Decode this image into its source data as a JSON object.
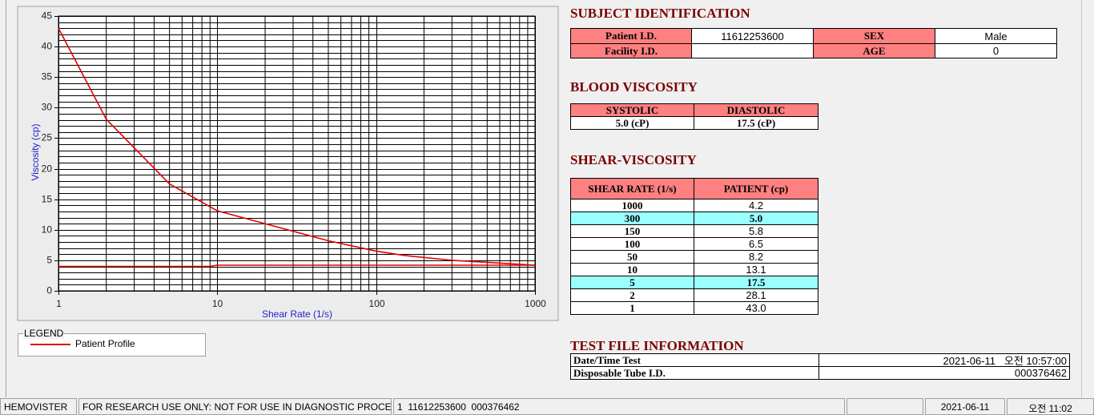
{
  "chart_data": {
    "type": "line",
    "x_label": "Shear Rate (1/s)",
    "y_label": "Viscosity (cp)",
    "xscale": "log",
    "xlim": [
      1,
      1000
    ],
    "xticks": [
      1,
      10,
      100,
      1000
    ],
    "ylim": [
      0,
      45
    ],
    "yticks": [
      0,
      5,
      10,
      15,
      20,
      25,
      30,
      35,
      40,
      45
    ],
    "grid": true,
    "minor_grid": true,
    "series": [
      {
        "name": "Patient Profile",
        "color": "#e00000",
        "x": [
          1,
          2,
          5,
          10,
          50,
          100,
          150,
          300,
          1000
        ],
        "values": [
          43.0,
          28.1,
          17.5,
          13.1,
          8.2,
          6.5,
          5.8,
          5.0,
          4.2
        ]
      },
      {
        "color": "#e00000",
        "x": [
          1,
          9,
          10,
          1000
        ],
        "values": [
          4.0,
          4.0,
          4.2,
          4.2
        ]
      }
    ]
  },
  "legend": {
    "title": "LEGEND"
  },
  "subject_identification": {
    "title": "SUBJECT IDENTIFICATION",
    "rows": [
      [
        "Patient I.D.",
        "11612253600",
        "SEX",
        "Male"
      ],
      [
        "Facility I.D.",
        null,
        "AGE",
        "0"
      ]
    ]
  },
  "blood_viscosity": {
    "title": "BLOOD VISCOSITY",
    "headers": [
      "SYSTOLIC",
      "DIASTOLIC"
    ],
    "values": [
      "5.0 (cP)",
      "17.5 (cP)"
    ]
  },
  "shear_viscosity": {
    "title": "SHEAR-VISCOSITY",
    "headers": [
      "SHEAR RATE (1/s)",
      "PATIENT (cp)"
    ],
    "rows": [
      [
        "1000",
        "4.2"
      ],
      [
        "300",
        "5.0"
      ],
      [
        "150",
        "5.8"
      ],
      [
        "100",
        "6.5"
      ],
      [
        "50",
        "8.2"
      ],
      [
        "10",
        "13.1"
      ],
      [
        "5",
        "17.5"
      ],
      [
        "2",
        "28.1"
      ],
      [
        "1",
        "43.0"
      ]
    ],
    "highlight_rows": [
      1,
      6
    ]
  },
  "test_file": {
    "title": "TEST FILE INFORMATION",
    "rows": [
      [
        "Date/Time Test",
        "2021-06-11   오전 10:57:00"
      ],
      [
        "Disposable Tube I.D.",
        "000376462"
      ]
    ]
  },
  "status_bar": [
    "HEMOVISTER",
    "FOR RESEARCH USE ONLY: NOT FOR USE IN DIAGNOSTIC PROCEDURES",
    "1  11612253600  000376462",
    null,
    "2021-06-11",
    "오전 11:02"
  ]
}
